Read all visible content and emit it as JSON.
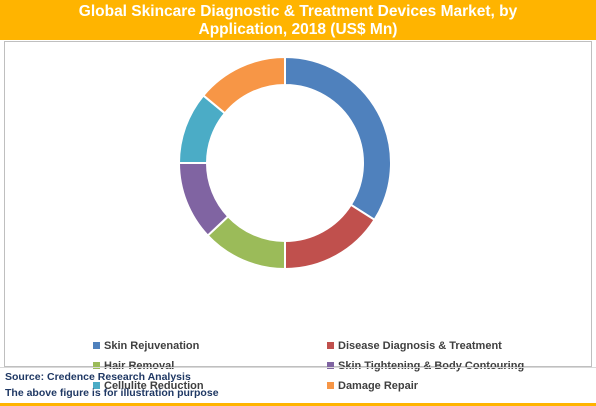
{
  "header": {
    "title_line1": "Global Skincare Diagnostic & Treatment Devices Market, by",
    "title_line2": "Application, 2018 (US$ Mn)"
  },
  "colors": {
    "title_bar": "#ffb400",
    "source_text": "#1f3864"
  },
  "chart_data": {
    "type": "pie",
    "style": "donut",
    "title": "Global Skincare Diagnostic & Treatment Devices Market, by Application, 2018 (US$ Mn)",
    "categories": [
      "Skin Rejuvenation",
      "Disease Diagnosis & Treatment",
      "Hair Removal",
      "Skin Tightening & Body Contouring",
      "Cellulite Reduction",
      "Damage Repair"
    ],
    "values": [
      34,
      16,
      13,
      12,
      11,
      14
    ],
    "colors": [
      "#4f81bd",
      "#c0504d",
      "#9bbb59",
      "#8064a2",
      "#4bacc6",
      "#f79646"
    ],
    "legend_position": "bottom"
  },
  "footer": {
    "source": "Source: Credence Research Analysis",
    "note": "The above figure is for illustration purpose"
  }
}
